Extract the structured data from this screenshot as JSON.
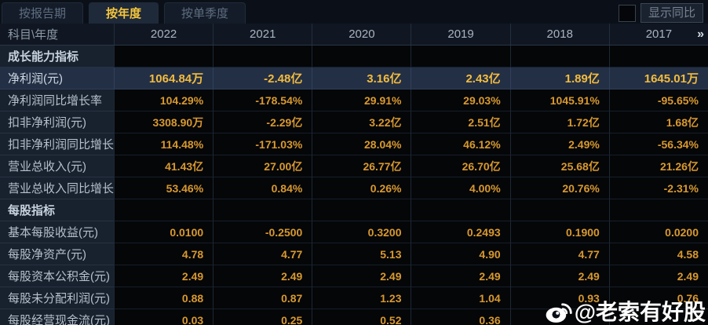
{
  "tabs": [
    {
      "label": "按报告期",
      "active": false
    },
    {
      "label": "按年度",
      "active": true
    },
    {
      "label": "按单季度",
      "active": false
    }
  ],
  "controls": {
    "show_yoy_label": "显示同比",
    "checkbox_checked": false
  },
  "table": {
    "header": {
      "first_col": "科目\\年度",
      "years": [
        "2022",
        "2021",
        "2020",
        "2019",
        "2018",
        "2017"
      ],
      "more_icon": "»"
    },
    "rows": [
      {
        "type": "section",
        "label": "成长能力指标",
        "values": [
          "",
          "",
          "",
          "",
          "",
          ""
        ]
      },
      {
        "type": "data",
        "highlight": true,
        "label": "净利润(元)",
        "values": [
          "1064.84万",
          "-2.48亿",
          "3.16亿",
          "2.43亿",
          "1.89亿",
          "1645.01万"
        ]
      },
      {
        "type": "data",
        "label": "净利润同比增长率",
        "values": [
          "104.29%",
          "-178.54%",
          "29.91%",
          "29.03%",
          "1045.91%",
          "-95.65%"
        ]
      },
      {
        "type": "data",
        "label": "扣非净利润(元)",
        "values": [
          "3308.90万",
          "-2.29亿",
          "3.22亿",
          "2.51亿",
          "1.72亿",
          "1.68亿"
        ]
      },
      {
        "type": "data",
        "label": "扣非净利润同比增长率",
        "values": [
          "114.48%",
          "-171.03%",
          "28.04%",
          "46.12%",
          "2.49%",
          "-56.34%"
        ]
      },
      {
        "type": "data",
        "label": "营业总收入(元)",
        "values": [
          "41.43亿",
          "27.00亿",
          "26.77亿",
          "26.70亿",
          "25.68亿",
          "21.26亿"
        ]
      },
      {
        "type": "data",
        "label": "营业总收入同比增长率",
        "values": [
          "53.46%",
          "0.84%",
          "0.26%",
          "4.00%",
          "20.76%",
          "-2.31%"
        ]
      },
      {
        "type": "section",
        "label": "每股指标",
        "values": [
          "",
          "",
          "",
          "",
          "",
          ""
        ]
      },
      {
        "type": "data",
        "label": "基本每股收益(元)",
        "values": [
          "0.0100",
          "-0.2500",
          "0.3200",
          "0.2493",
          "0.1900",
          "0.0200"
        ]
      },
      {
        "type": "data",
        "label": "每股净资产(元)",
        "values": [
          "4.78",
          "4.77",
          "5.13",
          "4.90",
          "4.77",
          "4.58"
        ]
      },
      {
        "type": "data",
        "label": "每股资本公积金(元)",
        "values": [
          "2.49",
          "2.49",
          "2.49",
          "2.49",
          "2.49",
          "2.49"
        ]
      },
      {
        "type": "data",
        "label": "每股未分配利润(元)",
        "values": [
          "0.88",
          "0.87",
          "1.23",
          "1.04",
          "0.93",
          "0.76"
        ]
      },
      {
        "type": "data",
        "label": "每股经营现金流(元)",
        "values": [
          "0.03",
          "0.25",
          "0.52",
          "0.36",
          "",
          ""
        ]
      }
    ]
  },
  "watermark": {
    "text": "@老索有好股"
  },
  "colors": {
    "value_gold": "#d8992f",
    "value_gold_bold": "#f2bc3f",
    "tab_active_text": "#f5c63c",
    "highlight_row_bg": "#232f45",
    "label_col_bg": "#18212e",
    "data_cell_bg": "#050608"
  }
}
